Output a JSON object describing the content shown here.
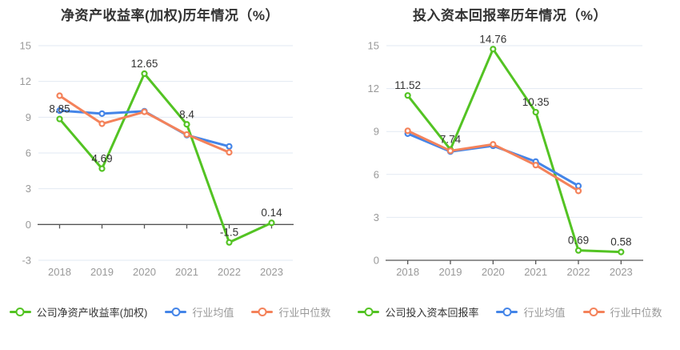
{
  "colors": {
    "company_green": "#53c323",
    "industry_avg_blue": "#4485e8",
    "industry_median_orange": "#f4825a",
    "grid": "#e2e9f3",
    "axis": "#555555",
    "axis_label": "#999999",
    "value_label": "#333333",
    "background": "#ffffff"
  },
  "chart_data": [
    {
      "type": "line",
      "title": "净资产收益率(加权)历年情况（%）",
      "xlabel": "",
      "ylabel": "",
      "categories": [
        "2018",
        "2019",
        "2020",
        "2021",
        "2022",
        "2023"
      ],
      "ylim": [
        -3,
        15
      ],
      "yticks": [
        15,
        12,
        9,
        6,
        3,
        0,
        -3
      ],
      "grid": true,
      "legend_position": "bottom",
      "series": [
        {
          "name": "公司净资产收益率(加权)",
          "color": "#53c323",
          "values": [
            8.85,
            4.69,
            12.65,
            8.4,
            -1.5,
            0.14
          ],
          "labels": [
            "8.85",
            "4.69",
            "12.65",
            "8.4",
            "-1.5",
            "0.14"
          ]
        },
        {
          "name": "行业均值",
          "color": "#4485e8",
          "values": [
            9.55,
            9.3,
            9.5,
            7.5,
            6.55,
            null
          ]
        },
        {
          "name": "行业中位数",
          "color": "#f4825a",
          "values": [
            10.8,
            8.45,
            9.45,
            7.55,
            6.05,
            null
          ]
        }
      ]
    },
    {
      "type": "line",
      "title": "投入资本回报率历年情况（%）",
      "xlabel": "",
      "ylabel": "",
      "categories": [
        "2018",
        "2019",
        "2020",
        "2021",
        "2022",
        "2023"
      ],
      "ylim": [
        0,
        15
      ],
      "yticks": [
        15,
        12,
        9,
        6,
        3,
        0
      ],
      "grid": true,
      "legend_position": "bottom",
      "series": [
        {
          "name": "公司投入资本回报率",
          "color": "#53c323",
          "values": [
            11.52,
            7.74,
            14.76,
            10.35,
            0.69,
            0.58
          ],
          "labels": [
            "11.52",
            "7.74",
            "14.76",
            "10.35",
            "0.69",
            "0.58"
          ]
        },
        {
          "name": "行业均值",
          "color": "#4485e8",
          "values": [
            8.85,
            7.6,
            8.0,
            6.9,
            5.2,
            null
          ]
        },
        {
          "name": "行业中位数",
          "color": "#f4825a",
          "values": [
            9.05,
            7.65,
            8.1,
            6.65,
            4.85,
            null
          ]
        }
      ]
    }
  ]
}
